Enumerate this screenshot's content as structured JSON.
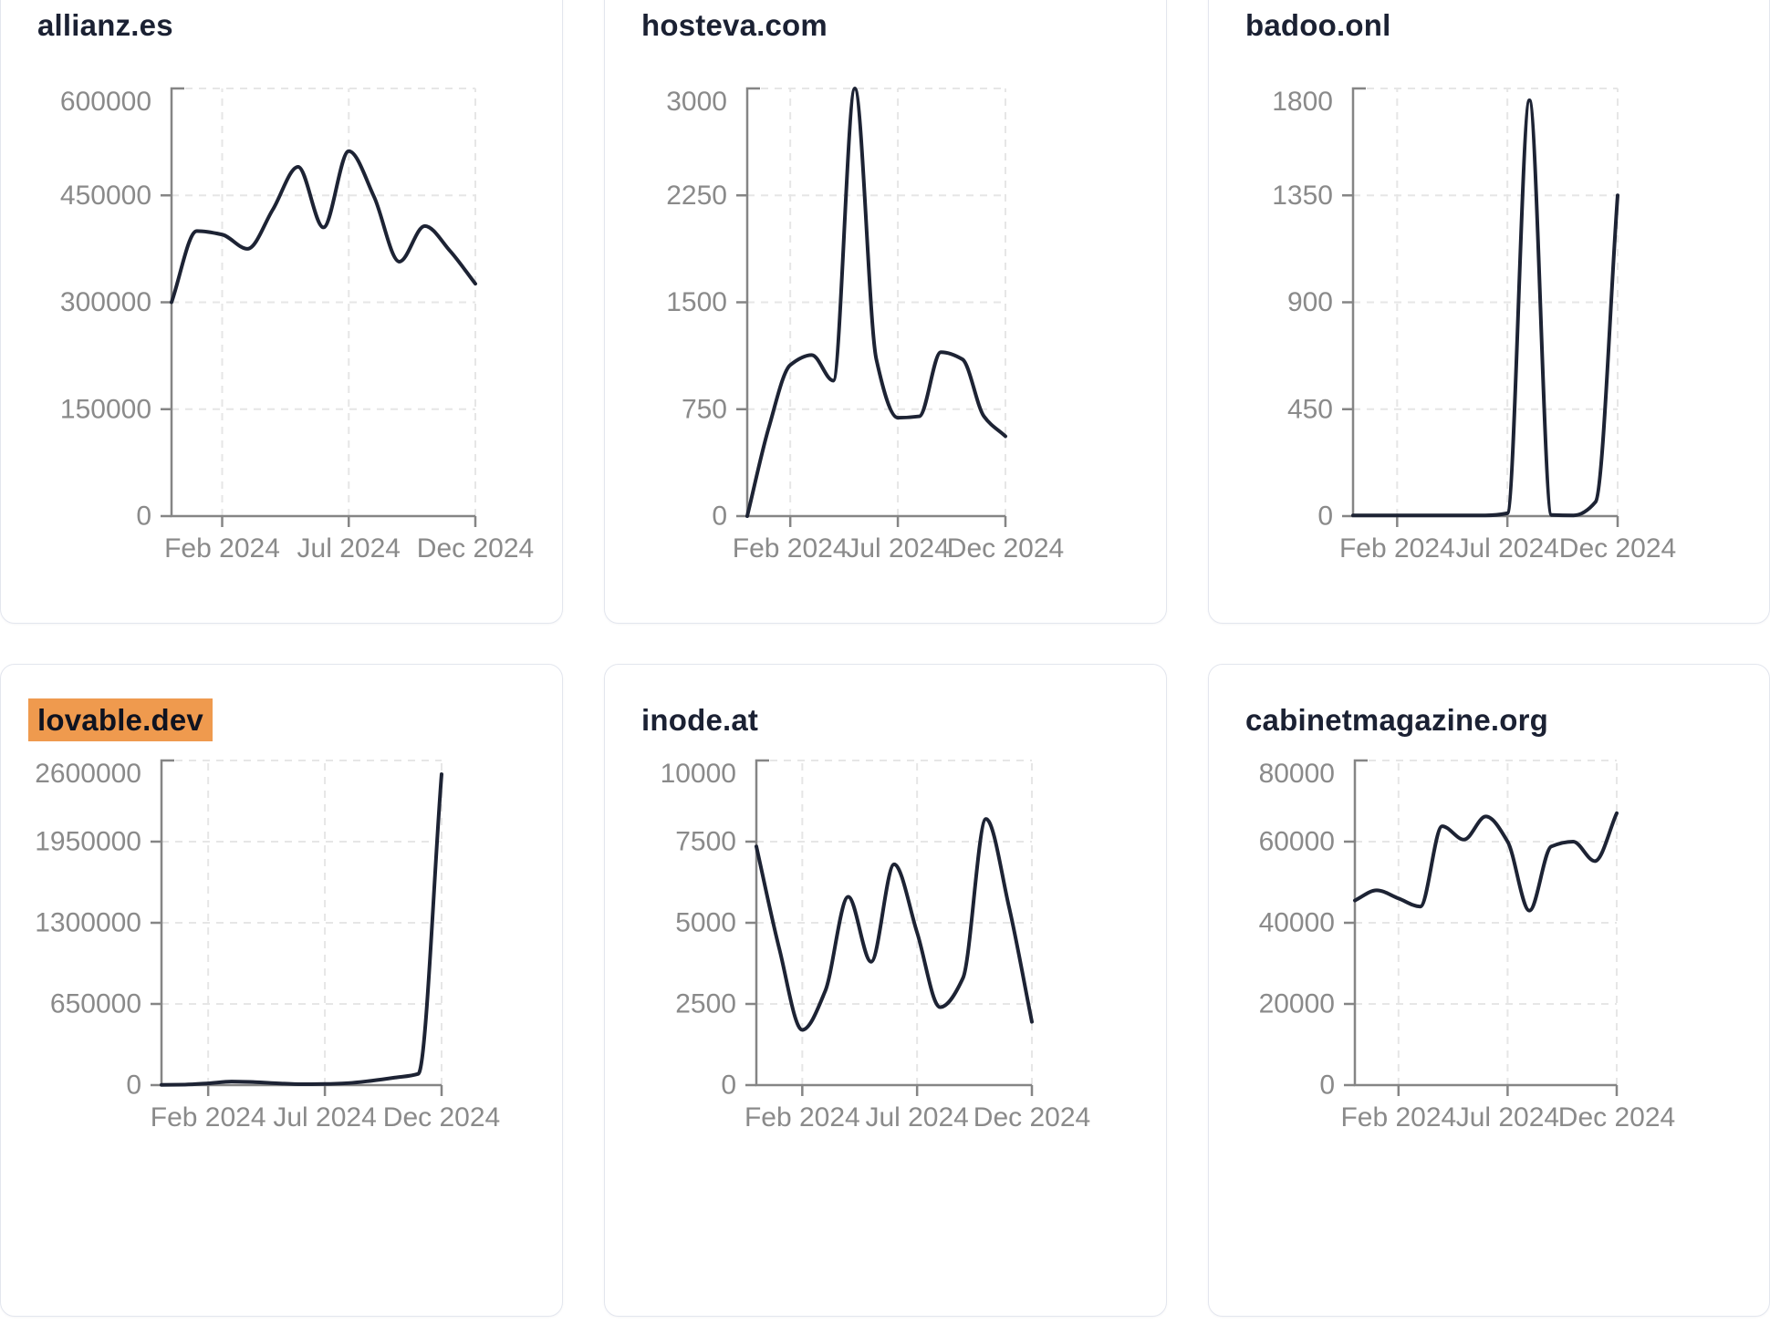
{
  "style": {
    "line_color": "#1d2334",
    "title_color": "#1b2133",
    "axis_color": "#858585",
    "tick_label_color": "#8a8a8a",
    "grid_color": "#e6e6e6",
    "card_border_color": "#e3e6ee",
    "card_background": "#ffffff",
    "page_background": "#ffffff",
    "highlight_background": "#ef9a4e"
  },
  "chart_data": [
    {
      "type": "line",
      "title": "allianz.es",
      "highlighted": false,
      "grid": "dashed",
      "legend": "none",
      "x_ticks": [
        {
          "label": "Feb 2024",
          "m": 2
        },
        {
          "label": "Jul 2024",
          "m": 7
        },
        {
          "label": "Dec 2024",
          "m": 12
        }
      ],
      "x_months_span": 12,
      "ylim": [
        0,
        600000
      ],
      "y_ticks": [
        0,
        150000,
        300000,
        450000,
        600000
      ],
      "values_monthly": [
        300000,
        400000,
        395000,
        375000,
        430000,
        490000,
        405000,
        512000,
        448000,
        357000,
        407000,
        372000,
        326000
      ]
    },
    {
      "type": "line",
      "title": "hosteva.com",
      "highlighted": false,
      "grid": "dashed",
      "legend": "none",
      "x_ticks": [
        {
          "label": "Feb 2024",
          "m": 2
        },
        {
          "label": "Jul 2024",
          "m": 7
        },
        {
          "label": "Dec 2024",
          "m": 12
        }
      ],
      "x_months_span": 12,
      "ylim": [
        0,
        3000
      ],
      "y_ticks": [
        0,
        750,
        1500,
        2250,
        3000
      ],
      "values_monthly": [
        0,
        620,
        1060,
        1130,
        950,
        3000,
        1100,
        690,
        700,
        1150,
        1100,
        700,
        560
      ]
    },
    {
      "type": "line",
      "title": "badoo.onl",
      "highlighted": false,
      "grid": "dashed",
      "legend": "none",
      "x_ticks": [
        {
          "label": "Feb 2024",
          "m": 2
        },
        {
          "label": "Jul 2024",
          "m": 7
        },
        {
          "label": "Dec 2024",
          "m": 12
        }
      ],
      "x_months_span": 12,
      "ylim": [
        0,
        1800
      ],
      "y_ticks": [
        0,
        450,
        900,
        1350,
        1800
      ],
      "values_monthly": [
        3,
        3,
        3,
        3,
        3,
        3,
        3,
        12,
        1750,
        5,
        3,
        60,
        1350
      ]
    },
    {
      "type": "line",
      "title": "lovable.dev",
      "highlighted": true,
      "grid": "dashed",
      "legend": "none",
      "x_ticks": [
        {
          "label": "Feb 2024",
          "m": 2
        },
        {
          "label": "Jul 2024",
          "m": 7
        },
        {
          "label": "Dec 2024",
          "m": 12
        }
      ],
      "x_months_span": 12,
      "ylim": [
        0,
        2600000
      ],
      "y_ticks": [
        0,
        650000,
        1300000,
        1950000,
        2600000
      ],
      "values_monthly": [
        2000,
        4000,
        14000,
        28000,
        24000,
        14000,
        7000,
        9000,
        16000,
        35000,
        60000,
        90000,
        2490000
      ]
    },
    {
      "type": "line",
      "title": "inode.at",
      "highlighted": false,
      "grid": "dashed",
      "legend": "none",
      "x_ticks": [
        {
          "label": "Feb 2024",
          "m": 2
        },
        {
          "label": "Jul 2024",
          "m": 7
        },
        {
          "label": "Dec 2024",
          "m": 12
        }
      ],
      "x_months_span": 12,
      "ylim": [
        0,
        10000
      ],
      "y_ticks": [
        0,
        2500,
        5000,
        7500,
        10000
      ],
      "values_monthly": [
        7350,
        4200,
        1700,
        2900,
        5800,
        3800,
        6800,
        4700,
        2400,
        3300,
        8200,
        5500,
        1950
      ]
    },
    {
      "type": "line",
      "title": "cabinetmagazine.org",
      "highlighted": false,
      "grid": "dashed",
      "legend": "none",
      "x_ticks": [
        {
          "label": "Feb 2024",
          "m": 2
        },
        {
          "label": "Jul 2024",
          "m": 7
        },
        {
          "label": "Dec 2024",
          "m": 12
        }
      ],
      "x_months_span": 12,
      "ylim": [
        0,
        80000
      ],
      "y_ticks": [
        0,
        20000,
        40000,
        60000,
        80000
      ],
      "values_monthly": [
        45500,
        48000,
        46000,
        44000,
        63800,
        60500,
        66200,
        60000,
        43000,
        58800,
        60000,
        55200,
        67000
      ]
    }
  ]
}
